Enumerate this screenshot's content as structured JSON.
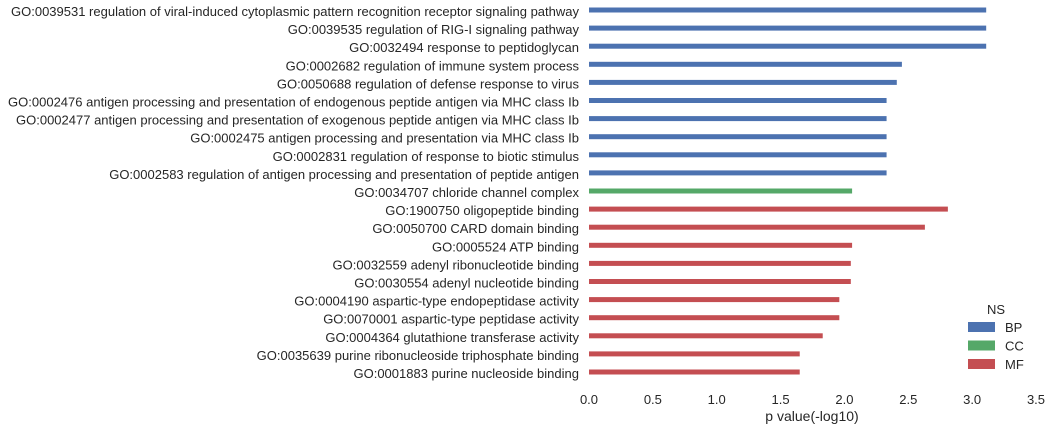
{
  "chart_data": {
    "type": "bar",
    "orientation": "horizontal",
    "categories": [
      "GO:0039531 regulation of viral-induced cytoplasmic pattern recognition receptor signaling pathway",
      "GO:0039535 regulation of RIG-I signaling pathway",
      "GO:0032494 response to peptidoglycan",
      "GO:0002682 regulation of immune system process",
      "GO:0050688 regulation of defense response to virus",
      "GO:0002476 antigen processing and presentation of endogenous peptide antigen via MHC class Ib",
      "GO:0002477 antigen processing and presentation of exogenous peptide antigen via MHC class Ib",
      "GO:0002475 antigen processing and presentation via MHC class Ib",
      "GO:0002831 regulation of response to biotic stimulus",
      "GO:0002583 regulation of antigen processing and presentation of peptide antigen",
      "GO:0034707 chloride channel complex",
      "GO:1900750 oligopeptide binding",
      "GO:0050700 CARD domain binding",
      "GO:0005524 ATP binding",
      "GO:0032559 adenyl ribonucleotide binding",
      "GO:0030554 adenyl nucleotide binding",
      "GO:0004190 aspartic-type endopeptidase activity",
      "GO:0070001 aspartic-type peptidase activity",
      "GO:0004364 glutathione transferase activity",
      "GO:0035639 purine ribonucleoside triphosphate binding",
      "GO:0001883 purine nucleoside binding"
    ],
    "values": [
      3.11,
      3.11,
      3.11,
      2.45,
      2.41,
      2.33,
      2.33,
      2.33,
      2.33,
      2.33,
      2.06,
      2.81,
      2.63,
      2.06,
      2.05,
      2.05,
      1.96,
      1.96,
      1.83,
      1.65,
      1.65
    ],
    "groups": [
      "BP",
      "BP",
      "BP",
      "BP",
      "BP",
      "BP",
      "BP",
      "BP",
      "BP",
      "BP",
      "CC",
      "MF",
      "MF",
      "MF",
      "MF",
      "MF",
      "MF",
      "MF",
      "MF",
      "MF",
      "MF"
    ],
    "xlabel": "p value(-log10)",
    "xlim": [
      0,
      3.5
    ],
    "xticks": [
      "0.0",
      "0.5",
      "1.0",
      "1.5",
      "2.0",
      "2.5",
      "3.0",
      "3.5"
    ],
    "grid": false,
    "legend": {
      "title": "NS",
      "placement": "bottom-right",
      "entries": [
        {
          "name": "BP",
          "color": "#4c72b0"
        },
        {
          "name": "CC",
          "color": "#55a868"
        },
        {
          "name": "MF",
          "color": "#c44e52"
        }
      ]
    }
  }
}
